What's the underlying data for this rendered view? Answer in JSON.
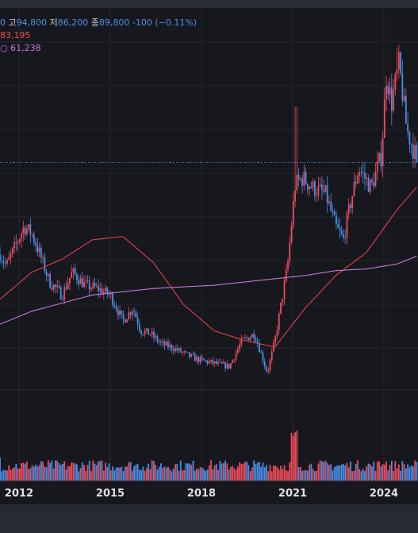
{
  "legend": {
    "o_value_partial": "0",
    "high_label": "고",
    "high_value": "94,800",
    "low_label": "저",
    "low_value": "86,200",
    "close_label": "종",
    "close_value": "89,800",
    "change": "-100",
    "change_pct": "(−0.11%)",
    "ma_long_partial": "83,195",
    "ma_longest_partial_icon": "ma-swatch",
    "ma_longest_value": "61,238"
  },
  "colors": {
    "up": "#ef4c5c",
    "down": "#4a8fe8",
    "ma_red": "#e0404c",
    "ma_purple": "#c07ad9",
    "bg": "#17181d",
    "grid": "#24262d",
    "axis_text": "#dfe2e8",
    "last_price_line": "#4a8fe8"
  },
  "chart_data": {
    "type": "candlestick",
    "x_axis": {
      "type": "date",
      "ticks": [
        "2012",
        "2015",
        "2018",
        "2021",
        "2024"
      ]
    },
    "y_axis": {
      "type": "price",
      "visible_range": [
        20000,
        130000
      ]
    },
    "last_price": 89800,
    "series": [
      {
        "kind": "ohlc_anchors",
        "points": [
          [
            "2010-09",
            62000
          ],
          [
            "2011-03",
            65000
          ],
          [
            "2011-08",
            58000
          ],
          [
            "2012-03",
            70000
          ],
          [
            "2012-06",
            68000
          ],
          [
            "2012-09",
            62000
          ],
          [
            "2013-01",
            53000
          ],
          [
            "2013-06",
            49000
          ],
          [
            "2013-10",
            56000
          ],
          [
            "2014-03",
            52000
          ],
          [
            "2014-08",
            51000
          ],
          [
            "2015-01",
            49000
          ],
          [
            "2015-06",
            41000
          ],
          [
            "2015-10",
            45000
          ],
          [
            "2016-01",
            38000
          ],
          [
            "2016-05",
            37000
          ],
          [
            "2016-09",
            34000
          ],
          [
            "2017-01",
            33000
          ],
          [
            "2017-06",
            31000
          ],
          [
            "2017-12",
            29000
          ],
          [
            "2018-06",
            28000
          ],
          [
            "2018-12",
            27000
          ],
          [
            "2019-05",
            35000
          ],
          [
            "2019-10",
            37000
          ],
          [
            "2020-03",
            25000
          ],
          [
            "2020-06",
            35000
          ],
          [
            "2020-11",
            58000
          ],
          [
            "2021-02",
            83000
          ],
          [
            "2021-05",
            85000
          ],
          [
            "2021-09",
            82000
          ],
          [
            "2022-02",
            80000
          ],
          [
            "2022-06",
            70000
          ],
          [
            "2022-09",
            66000
          ],
          [
            "2022-12",
            78000
          ],
          [
            "2023-03",
            88000
          ],
          [
            "2023-08",
            82000
          ],
          [
            "2023-12",
            92000
          ],
          [
            "2024-02",
            117000
          ],
          [
            "2024-04",
            108000
          ],
          [
            "2024-07",
            120000
          ],
          [
            "2024-10",
            100000
          ],
          [
            "2025-01",
            93000
          ],
          [
            "2025-03",
            89800
          ]
        ]
      },
      {
        "kind": "ma_red",
        "points": [
          [
            "2010-05",
            40000
          ],
          [
            "2011-06",
            48000
          ],
          [
            "2012-06",
            56000
          ],
          [
            "2013-06",
            60000
          ],
          [
            "2014-06",
            66000
          ],
          [
            "2015-06",
            67000
          ],
          [
            "2016-06",
            59000
          ],
          [
            "2017-06",
            46000
          ],
          [
            "2018-06",
            38000
          ],
          [
            "2019-06",
            35000
          ],
          [
            "2020-06",
            33000
          ],
          [
            "2021-06",
            45000
          ],
          [
            "2022-06",
            55000
          ],
          [
            "2023-06",
            62000
          ],
          [
            "2024-06",
            75000
          ],
          [
            "2025-03",
            83195
          ]
        ]
      },
      {
        "kind": "ma_purple",
        "points": [
          [
            "2010-05",
            36000
          ],
          [
            "2012-06",
            44000
          ],
          [
            "2014-06",
            49000
          ],
          [
            "2016-06",
            51000
          ],
          [
            "2018-06",
            52000
          ],
          [
            "2020-06",
            54000
          ],
          [
            "2021-06",
            55000
          ],
          [
            "2022-06",
            56500
          ],
          [
            "2023-06",
            57000
          ],
          [
            "2024-06",
            58500
          ],
          [
            "2025-03",
            61238
          ]
        ]
      }
    ]
  }
}
